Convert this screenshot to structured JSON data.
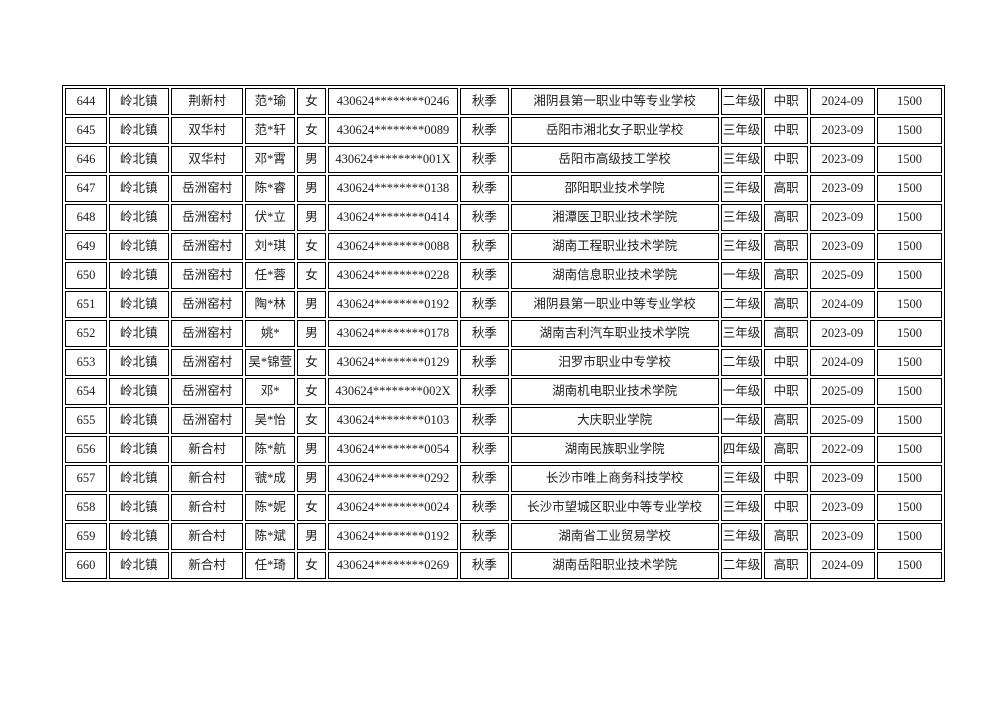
{
  "colors": {
    "border": "#000000",
    "text": "#1c1c1c",
    "background": "#ffffff"
  },
  "table": {
    "rows": [
      [
        "644",
        "岭北镇",
        "荆新村",
        "范*瑜",
        "女",
        "430624********0246",
        "秋季",
        "湘阴县第一职业中等专业学校",
        "二年级",
        "中职",
        "2024-09",
        "1500"
      ],
      [
        "645",
        "岭北镇",
        "双华村",
        "范*轩",
        "女",
        "430624********0089",
        "秋季",
        "岳阳市湘北女子职业学校",
        "三年级",
        "中职",
        "2023-09",
        "1500"
      ],
      [
        "646",
        "岭北镇",
        "双华村",
        "邓*霄",
        "男",
        "430624********001X",
        "秋季",
        "岳阳市高级技工学校",
        "三年级",
        "中职",
        "2023-09",
        "1500"
      ],
      [
        "647",
        "岭北镇",
        "岳洲窑村",
        "陈*睿",
        "男",
        "430624********0138",
        "秋季",
        "邵阳职业技术学院",
        "三年级",
        "高职",
        "2023-09",
        "1500"
      ],
      [
        "648",
        "岭北镇",
        "岳洲窑村",
        "伏*立",
        "男",
        "430624********0414",
        "秋季",
        "湘潭医卫职业技术学院",
        "三年级",
        "高职",
        "2023-09",
        "1500"
      ],
      [
        "649",
        "岭北镇",
        "岳洲窑村",
        "刘*琪",
        "女",
        "430624********0088",
        "秋季",
        "湖南工程职业技术学院",
        "三年级",
        "高职",
        "2023-09",
        "1500"
      ],
      [
        "650",
        "岭北镇",
        "岳洲窑村",
        "任*蓉",
        "女",
        "430624********0228",
        "秋季",
        "湖南信息职业技术学院",
        "一年级",
        "高职",
        "2025-09",
        "1500"
      ],
      [
        "651",
        "岭北镇",
        "岳洲窑村",
        "陶*林",
        "男",
        "430624********0192",
        "秋季",
        "湘阴县第一职业中等专业学校",
        "二年级",
        "高职",
        "2024-09",
        "1500"
      ],
      [
        "652",
        "岭北镇",
        "岳洲窑村",
        "姚*",
        "男",
        "430624********0178",
        "秋季",
        "湖南吉利汽车职业技术学院",
        "三年级",
        "高职",
        "2023-09",
        "1500"
      ],
      [
        "653",
        "岭北镇",
        "岳洲窑村",
        "吴*锦萱",
        "女",
        "430624********0129",
        "秋季",
        "汨罗市职业中专学校",
        "二年级",
        "中职",
        "2024-09",
        "1500"
      ],
      [
        "654",
        "岭北镇",
        "岳洲窑村",
        "邓*",
        "女",
        "430624********002X",
        "秋季",
        "湖南机电职业技术学院",
        "一年级",
        "中职",
        "2025-09",
        "1500"
      ],
      [
        "655",
        "岭北镇",
        "岳洲窑村",
        "吴*怡",
        "女",
        "430624********0103",
        "秋季",
        "大庆职业学院",
        "一年级",
        "高职",
        "2025-09",
        "1500"
      ],
      [
        "656",
        "岭北镇",
        "新合村",
        "陈*航",
        "男",
        "430624********0054",
        "秋季",
        "湖南民族职业学院",
        "四年级",
        "高职",
        "2022-09",
        "1500"
      ],
      [
        "657",
        "岭北镇",
        "新合村",
        "虢*成",
        "男",
        "430624********0292",
        "秋季",
        "长沙市唯上商务科技学校",
        "三年级",
        "中职",
        "2023-09",
        "1500"
      ],
      [
        "658",
        "岭北镇",
        "新合村",
        "陈*妮",
        "女",
        "430624********0024",
        "秋季",
        "长沙市望城区职业中等专业学校",
        "三年级",
        "中职",
        "2023-09",
        "1500"
      ],
      [
        "659",
        "岭北镇",
        "新合村",
        "陈*斌",
        "男",
        "430624********0192",
        "秋季",
        "湖南省工业贸易学校",
        "三年级",
        "高职",
        "2023-09",
        "1500"
      ],
      [
        "660",
        "岭北镇",
        "新合村",
        "任*琦",
        "女",
        "430624********0269",
        "秋季",
        "湖南岳阳职业技术学院",
        "二年级",
        "高职",
        "2024-09",
        "1500"
      ]
    ]
  }
}
